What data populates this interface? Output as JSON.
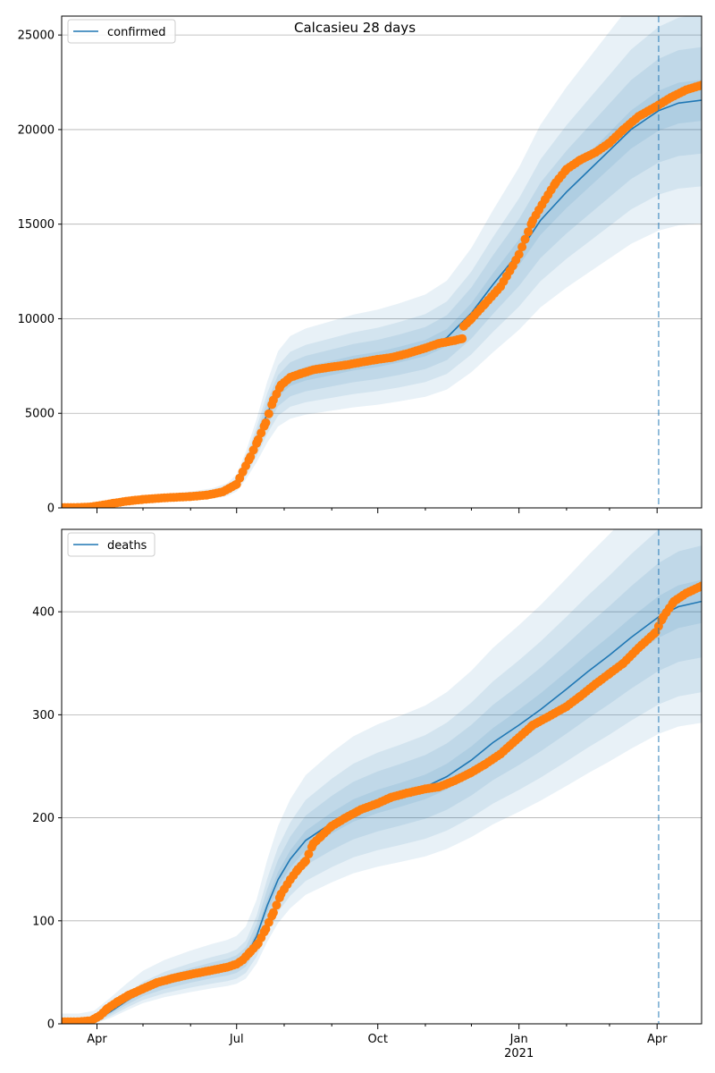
{
  "figure": {
    "title": "Calcasieu 28 days",
    "colors": {
      "model_line": "#1f77b4",
      "observed": "#ff7f0e",
      "band": "#1f77b4",
      "grid": "#b0b0b0",
      "vline": "#1f77b4"
    }
  },
  "x_axis": {
    "tick_labels": [
      "Apr",
      "Jul",
      "Oct",
      "Jan",
      "Apr"
    ],
    "year_label": "2021"
  },
  "chart_data": [
    {
      "type": "line",
      "panel": "confirmed",
      "legend": "confirmed",
      "legend_position": "upper-left",
      "grid": "horizontal",
      "x_range": [
        "2020-03-09",
        "2021-04-30"
      ],
      "ylim": [
        0,
        26000
      ],
      "yticks": [
        0,
        5000,
        10000,
        15000,
        20000,
        25000
      ],
      "vline": "2021-04-02",
      "model": {
        "x": [
          "2020-03-09",
          "2020-03-20",
          "2020-03-30",
          "2020-04-10",
          "2020-04-20",
          "2020-05-01",
          "2020-05-15",
          "2020-06-01",
          "2020-06-15",
          "2020-06-25",
          "2020-07-01",
          "2020-07-07",
          "2020-07-14",
          "2020-07-21",
          "2020-07-28",
          "2020-08-05",
          "2020-08-15",
          "2020-09-01",
          "2020-09-15",
          "2020-10-01",
          "2020-10-15",
          "2020-11-01",
          "2020-11-15",
          "2020-12-01",
          "2020-12-15",
          "2021-01-01",
          "2021-01-15",
          "2021-02-01",
          "2021-02-15",
          "2021-03-01",
          "2021-03-15",
          "2021-04-02",
          "2021-04-15",
          "2021-04-30"
        ],
        "y": [
          0,
          0,
          60,
          200,
          320,
          420,
          520,
          620,
          750,
          950,
          1300,
          2200,
          3500,
          5000,
          6200,
          6800,
          7100,
          7400,
          7650,
          7850,
          8100,
          8450,
          9000,
          10300,
          11800,
          13500,
          15200,
          16700,
          17800,
          18900,
          20000,
          21000,
          21400,
          21550
        ],
        "band_rel": [
          [
            0.95,
            1.05,
            [
              8,
              8
            ]
          ],
          [
            0.87,
            1.13,
            [
              15,
              15
            ]
          ],
          [
            0.79,
            1.21,
            [
              25,
              25
            ]
          ],
          [
            0.7,
            1.33,
            [
              40,
              40
            ]
          ]
        ]
      },
      "observed": {
        "x": [
          "2020-03-09",
          "2020-03-20",
          "2020-03-28",
          "2020-04-05",
          "2020-04-12",
          "2020-04-20",
          "2020-05-01",
          "2020-05-15",
          "2020-06-01",
          "2020-06-12",
          "2020-06-22",
          "2020-07-01",
          "2020-07-05",
          "2020-07-10",
          "2020-07-15",
          "2020-07-20",
          "2020-07-25",
          "2020-07-30",
          "2020-08-05",
          "2020-08-12",
          "2020-08-20",
          "2020-09-01",
          "2020-09-10",
          "2020-09-20",
          "2020-10-01",
          "2020-10-10",
          "2020-10-20",
          "2020-11-01",
          "2020-11-10",
          "2020-11-20",
          "2020-11-25",
          "2020-11-26",
          "2020-12-01",
          "2020-12-10",
          "2020-12-20",
          "2020-12-28",
          "2021-01-01",
          "2021-01-05",
          "2021-01-10",
          "2021-01-18",
          "2021-01-25",
          "2021-02-01",
          "2021-02-10",
          "2021-02-20",
          "2021-03-01",
          "2021-03-10",
          "2021-03-20",
          "2021-03-31",
          "2021-04-10",
          "2021-04-20",
          "2021-04-30"
        ],
        "y": [
          20,
          20,
          50,
          150,
          250,
          350,
          450,
          530,
          600,
          680,
          850,
          1250,
          1900,
          2700,
          3600,
          4500,
          5700,
          6500,
          6900,
          7100,
          7300,
          7450,
          7550,
          7700,
          7850,
          7950,
          8150,
          8450,
          8700,
          8850,
          8950,
          9600,
          10000,
          10800,
          11700,
          12800,
          13400,
          14200,
          15200,
          16300,
          17200,
          17900,
          18400,
          18800,
          19300,
          20000,
          20700,
          21200,
          21700,
          22100,
          22350
        ]
      }
    },
    {
      "type": "line",
      "panel": "deaths",
      "legend": "deaths",
      "legend_position": "upper-left",
      "grid": "horizontal",
      "x_range": [
        "2020-03-09",
        "2021-04-30"
      ],
      "ylim": [
        0,
        480
      ],
      "yticks": [
        0,
        100,
        200,
        300,
        400
      ],
      "vline": "2021-04-02",
      "model": {
        "x": [
          "2020-03-09",
          "2020-03-20",
          "2020-03-30",
          "2020-04-10",
          "2020-04-20",
          "2020-05-01",
          "2020-05-15",
          "2020-06-01",
          "2020-06-15",
          "2020-06-25",
          "2020-07-01",
          "2020-07-07",
          "2020-07-14",
          "2020-07-21",
          "2020-07-28",
          "2020-08-05",
          "2020-08-15",
          "2020-09-01",
          "2020-09-15",
          "2020-10-01",
          "2020-10-15",
          "2020-11-01",
          "2020-11-15",
          "2020-12-01",
          "2020-12-15",
          "2021-01-01",
          "2021-01-15",
          "2021-02-01",
          "2021-02-15",
          "2021-03-01",
          "2021-03-15",
          "2021-04-02",
          "2021-04-15",
          "2021-04-30"
        ],
        "y": [
          0,
          0,
          2,
          12,
          22,
          32,
          40,
          47,
          52,
          55,
          58,
          65,
          85,
          115,
          140,
          160,
          178,
          195,
          207,
          216,
          222,
          230,
          240,
          256,
          273,
          290,
          305,
          325,
          342,
          358,
          375,
          395,
          405,
          410
        ],
        "band_rel": [
          [
            0.95,
            1.05,
            [
              0.5,
              0.5
            ]
          ],
          [
            0.87,
            1.13,
            [
              1,
              1
            ]
          ],
          [
            0.79,
            1.21,
            [
              2,
              2
            ]
          ],
          [
            0.72,
            1.3,
            [
              3,
              10
            ]
          ]
        ]
      },
      "observed": {
        "x": [
          "2020-03-09",
          "2020-03-20",
          "2020-03-28",
          "2020-04-03",
          "2020-04-08",
          "2020-04-15",
          "2020-04-22",
          "2020-05-01",
          "2020-05-10",
          "2020-05-20",
          "2020-06-01",
          "2020-06-15",
          "2020-06-25",
          "2020-07-01",
          "2020-07-05",
          "2020-07-10",
          "2020-07-15",
          "2020-07-20",
          "2020-07-25",
          "2020-07-30",
          "2020-08-05",
          "2020-08-10",
          "2020-08-15",
          "2020-08-20",
          "2020-08-25",
          "2020-09-01",
          "2020-09-10",
          "2020-09-20",
          "2020-10-01",
          "2020-10-10",
          "2020-10-20",
          "2020-11-01",
          "2020-11-10",
          "2020-11-20",
          "2020-12-01",
          "2020-12-10",
          "2020-12-20",
          "2021-01-01",
          "2021-01-10",
          "2021-01-20",
          "2021-02-01",
          "2021-02-10",
          "2021-02-20",
          "2021-03-01",
          "2021-03-10",
          "2021-03-20",
          "2021-03-31",
          "2021-04-05",
          "2021-04-12",
          "2021-04-20",
          "2021-04-30"
        ],
        "y": [
          2,
          2,
          3,
          8,
          15,
          22,
          28,
          34,
          40,
          44,
          48,
          52,
          55,
          58,
          62,
          70,
          78,
          92,
          108,
          126,
          140,
          150,
          158,
          175,
          182,
          192,
          200,
          208,
          214,
          220,
          224,
          228,
          230,
          236,
          244,
          252,
          262,
          278,
          290,
          298,
          308,
          318,
          330,
          340,
          350,
          365,
          380,
          395,
          410,
          418,
          425
        ]
      }
    }
  ]
}
